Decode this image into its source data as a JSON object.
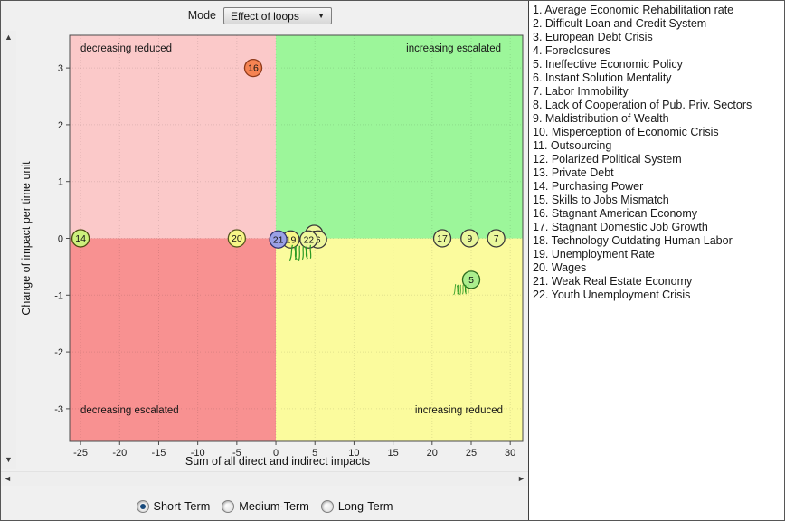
{
  "toolbar": {
    "mode_label": "Mode",
    "mode_value": "Effect of loops"
  },
  "icons": {
    "combo_arrow": "▼",
    "scroll_up": "▲",
    "scroll_down": "▼",
    "scroll_left": "◄",
    "scroll_right": "►"
  },
  "timeframe": {
    "options": [
      {
        "label": "Short-Term",
        "selected": true
      },
      {
        "label": "Medium-Term",
        "selected": false
      },
      {
        "label": "Long-Term",
        "selected": false
      }
    ]
  },
  "legend": {
    "items": [
      "1. Average Economic Rehabilitation rate",
      "2. Difficult Loan and Credit System",
      "3. European Debt Crisis",
      "4. Foreclosures",
      "5. Ineffective Economic Policy",
      "6. Instant Solution Mentality",
      "7. Labor Immobility",
      "8. Lack of Cooperation of Pub. Priv. Sectors",
      "9. Maldistribution of Wealth",
      "10. Misperception of Economic Crisis",
      "11. Outsourcing",
      "12. Polarized Political System",
      "13. Private Debt",
      "14. Purchasing Power",
      "15. Skills to Jobs Mismatch",
      "16. Stagnant American Economy",
      "17. Stagnant Domestic Job Growth",
      "18. Technology Outdating Human Labor",
      "19. Unemployment Rate",
      "20. Wages",
      "21. Weak Real Estate Economy",
      "22. Youth Unemployment Crisis"
    ]
  },
  "chart_data": {
    "type": "scatter",
    "xlabel": "Sum of all direct and indirect impacts",
    "ylabel": "Change of impact per time unit",
    "xlim": [
      -26.4,
      31.6
    ],
    "ylim": [
      -3.575,
      3.575
    ],
    "xticks": [
      -25,
      -20,
      -15,
      -10,
      -5,
      0,
      5,
      10,
      15,
      20,
      25,
      30
    ],
    "yticks": [
      3,
      2,
      1,
      0,
      -1,
      -2,
      -3
    ],
    "grid": true,
    "marker_radius": 9.5,
    "quadrants": {
      "top_left": {
        "label": "decreasing reduced",
        "color": "#fbc9c9"
      },
      "top_right": {
        "label": "increasing escalated",
        "color": "#9cf69a"
      },
      "bottom_left": {
        "label": "decreasing escalated",
        "color": "#f89191"
      },
      "bottom_right": {
        "label": "increasing reduced",
        "color": "#fbfb9d"
      }
    },
    "points": [
      {
        "id": 16,
        "x": -2.9,
        "y": 3.0,
        "fill": "#f58352",
        "stroke": "#8f3a1a"
      },
      {
        "id": 14,
        "x": -25,
        "y": 0,
        "fill": "#cdf07d",
        "stroke": "#4a4a10"
      },
      {
        "id": 20,
        "x": -5,
        "y": 0,
        "fill": "#f7f687",
        "stroke": "#55551e"
      },
      {
        "id": 2,
        "x": 4.9,
        "y": 0.08,
        "fill": "#eef79d",
        "stroke": "#3a3a3a"
      },
      {
        "id": 6,
        "x": 5.4,
        "y": -0.02,
        "fill": "#eef79d",
        "stroke": "#3a3a3a"
      },
      {
        "id": 19,
        "x": 1.9,
        "y": -0.02,
        "fill": "#f7f687",
        "stroke": "#3a3a3a"
      },
      {
        "id": 22,
        "x": 4.2,
        "y": -0.02,
        "fill": "#eef79d",
        "stroke": "#3a3a3a"
      },
      {
        "id": 21,
        "x": 0.3,
        "y": -0.02,
        "fill": "#9aa0e5",
        "stroke": "#32326e"
      },
      {
        "id": 17,
        "x": 21.3,
        "y": 0,
        "fill": "#e9f79c",
        "stroke": "#3a3a3a"
      },
      {
        "id": 9,
        "x": 24.8,
        "y": 0,
        "fill": "#e9f79c",
        "stroke": "#3a3a3a"
      },
      {
        "id": 7,
        "x": 28.2,
        "y": 0,
        "fill": "#e9f79c",
        "stroke": "#3a3a3a"
      },
      {
        "id": 5,
        "x": 25,
        "y": -0.73,
        "fill": "#abee8d",
        "stroke": "#2e6b1e"
      }
    ],
    "scribbles": [
      {
        "x": 3.4,
        "y": -0.18,
        "scale": 1
      },
      {
        "x": 23.9,
        "y": -0.85,
        "scale": 0.7
      }
    ]
  }
}
